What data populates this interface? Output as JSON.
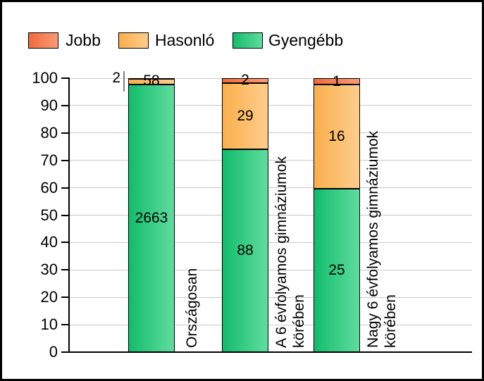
{
  "window": {
    "background": "#ffffff",
    "border_color": "#000000"
  },
  "legend": {
    "position": "top",
    "items": [
      {
        "label": "Jobb"
      },
      {
        "label": "Hasonló"
      },
      {
        "label": "Gyengébb"
      }
    ]
  },
  "colors": {
    "series": {
      "Jobb": [
        "#f2693b",
        "#f99c79"
      ],
      "Hasonló": [
        "#faaf4d",
        "#fdcd8c"
      ],
      "Gyengébb": [
        "#12bc6b",
        "#60dc9f"
      ]
    },
    "gridline": "#c8c8c8",
    "axis": "#000000",
    "leader_line": "#808080",
    "text": "#000000"
  },
  "chart_data": {
    "type": "bar",
    "subtype": "stacked-percentage",
    "title": "",
    "xlabel": "",
    "ylabel": "",
    "categories": [
      "Országosan",
      "A 6 évfolyamos gimnáziumok körében",
      "Nagy 6 évfolyamos gimnáziumok körében"
    ],
    "category_label_lines": [
      [
        "Országosan"
      ],
      [
        "A 6 évfolyamos gimnáziumok",
        "körében"
      ],
      [
        "Nagy 6 évfolyamos gimnáziumok",
        "körében"
      ]
    ],
    "series": [
      {
        "name": "Jobb",
        "values": [
          2,
          2,
          1
        ]
      },
      {
        "name": "Hasonló",
        "values": [
          58,
          29,
          16
        ]
      },
      {
        "name": "Gyengébb",
        "values": [
          2663,
          88,
          25
        ]
      }
    ],
    "stack_order_bottom_to_top": [
      "Gyengébb",
      "Hasonló",
      "Jobb"
    ],
    "ylim": [
      0,
      100
    ],
    "yticks": [
      0,
      10,
      20,
      30,
      40,
      50,
      60,
      70,
      80,
      90,
      100
    ],
    "grid": true,
    "legend_position": "top",
    "annotations": {
      "outside_label": {
        "category_index": 0,
        "series": "Jobb",
        "value": "2"
      }
    }
  }
}
